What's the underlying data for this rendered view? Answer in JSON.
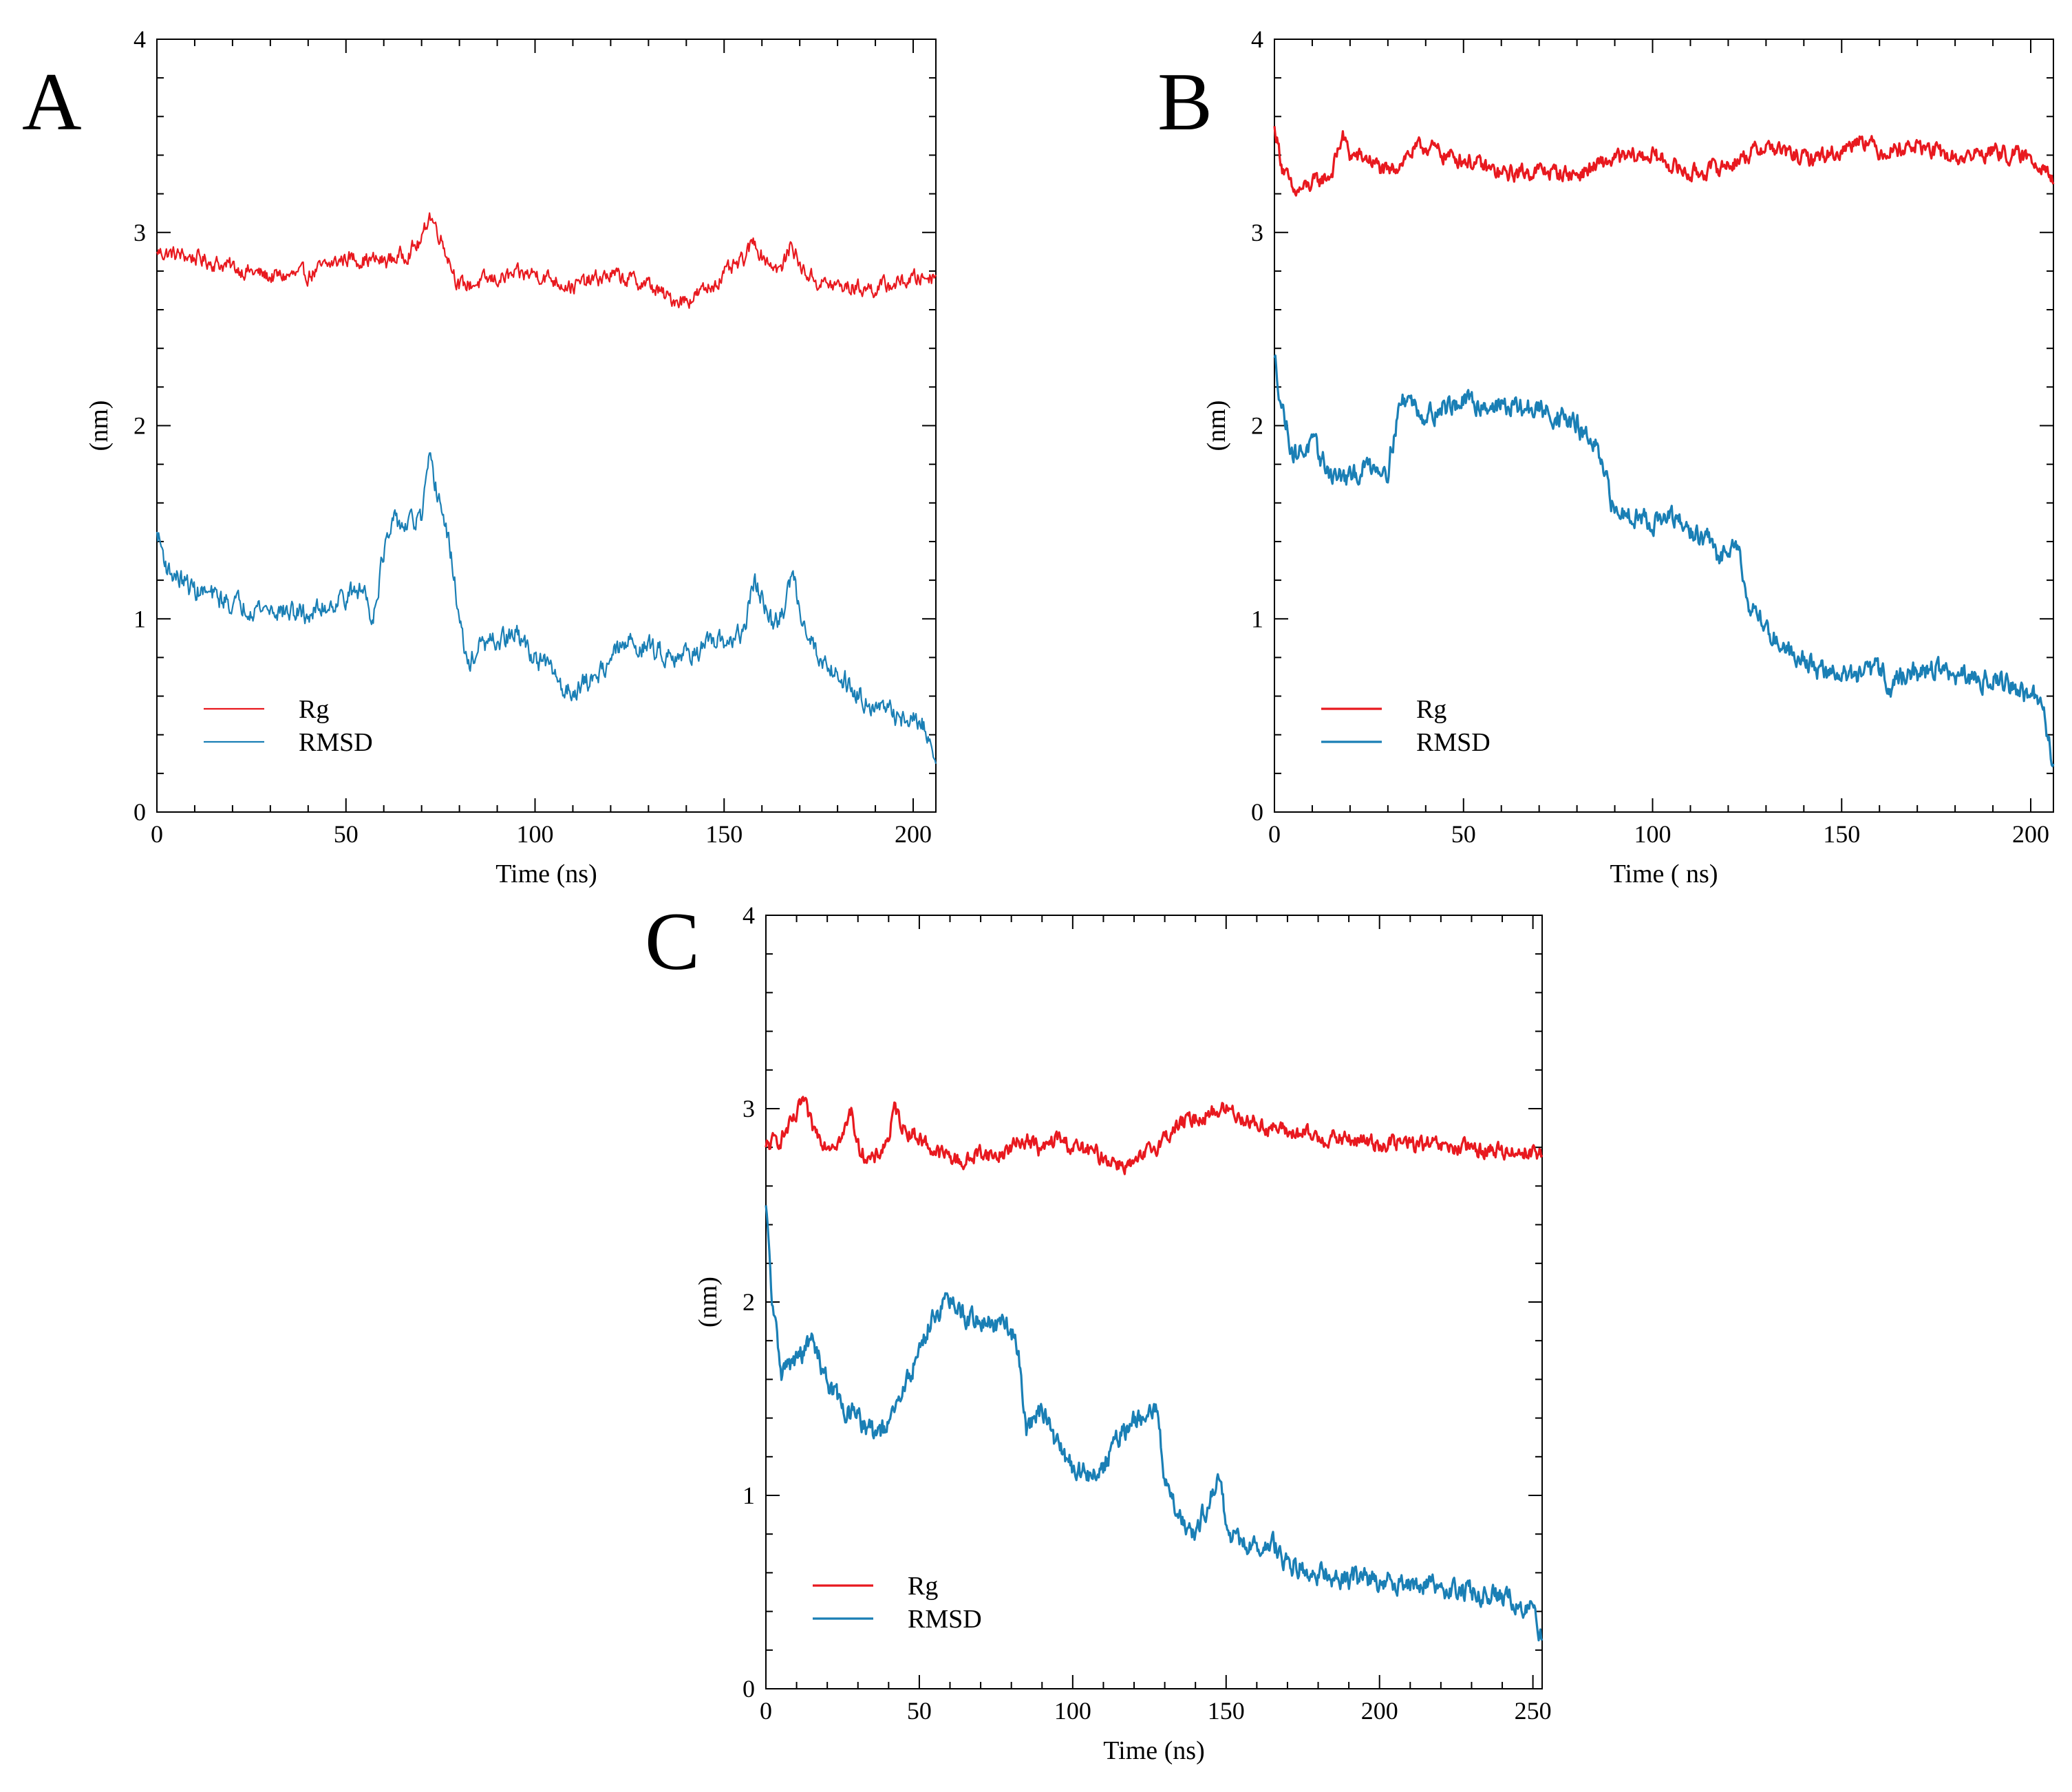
{
  "figure": {
    "panels": [
      "A",
      "B",
      "C"
    ]
  },
  "chart_data": [
    {
      "panel": "A",
      "type": "line",
      "xlabel": "Time (ns)",
      "ylabel": "(nm)",
      "xlim": [
        0,
        206
      ],
      "ylim": [
        0,
        4
      ],
      "xticks": [
        "0",
        "50",
        "100",
        "150",
        "200"
      ],
      "yticks": [
        "0",
        "1",
        "2",
        "3",
        "4"
      ],
      "legend_position": "bottom-left",
      "series": [
        {
          "name": "Rg",
          "color": "#e8191f",
          "x": [
            0,
            10,
            20,
            30,
            40,
            50,
            60,
            65,
            70,
            72,
            75,
            80,
            85,
            90,
            100,
            110,
            120,
            130,
            135,
            140,
            145,
            150,
            155,
            158,
            160,
            165,
            168,
            170,
            175,
            180,
            190,
            200,
            206
          ],
          "y": [
            2.9,
            2.87,
            2.82,
            2.77,
            2.78,
            2.87,
            2.85,
            2.88,
            2.95,
            3.1,
            2.98,
            2.72,
            2.74,
            2.76,
            2.79,
            2.72,
            2.78,
            2.73,
            2.66,
            2.65,
            2.7,
            2.78,
            2.85,
            2.96,
            2.88,
            2.8,
            2.95,
            2.82,
            2.74,
            2.72,
            2.71,
            2.76,
            2.78
          ]
        },
        {
          "name": "RMSD",
          "color": "#1a7fb5",
          "x": [
            0,
            3,
            10,
            20,
            30,
            40,
            45,
            50,
            55,
            57,
            60,
            63,
            66,
            70,
            72,
            75,
            78,
            80,
            82,
            85,
            90,
            95,
            100,
            105,
            108,
            115,
            120,
            125,
            130,
            135,
            140,
            145,
            150,
            155,
            158,
            160,
            163,
            166,
            168,
            170,
            175,
            180,
            185,
            190,
            195,
            200,
            203,
            206
          ],
          "y": [
            1.45,
            1.25,
            1.15,
            1.08,
            1.05,
            1.02,
            1.07,
            1.12,
            1.15,
            1.0,
            1.35,
            1.5,
            1.48,
            1.52,
            1.8,
            1.6,
            1.3,
            1.0,
            0.75,
            0.85,
            0.88,
            0.92,
            0.8,
            0.72,
            0.62,
            0.68,
            0.8,
            0.88,
            0.85,
            0.82,
            0.82,
            0.85,
            0.88,
            0.92,
            1.2,
            1.1,
            0.95,
            1.05,
            1.25,
            1.05,
            0.8,
            0.72,
            0.62,
            0.55,
            0.5,
            0.47,
            0.45,
            0.25
          ]
        }
      ]
    },
    {
      "panel": "B",
      "type": "line",
      "xlabel": "Time ( ns)",
      "ylabel": "(nm)",
      "xlim": [
        0,
        206
      ],
      "ylim": [
        0,
        4
      ],
      "xticks": [
        "0",
        "50",
        "100",
        "150",
        "200"
      ],
      "yticks": [
        "0",
        "1",
        "2",
        "3",
        "4"
      ],
      "legend_position": "bottom-left",
      "series": [
        {
          "name": "Rg",
          "color": "#e8191f",
          "x": [
            0,
            2,
            5,
            10,
            15,
            18,
            20,
            25,
            30,
            35,
            40,
            45,
            50,
            60,
            70,
            80,
            90,
            100,
            110,
            120,
            130,
            140,
            150,
            155,
            160,
            170,
            180,
            190,
            200,
            204,
            206
          ],
          "y": [
            3.55,
            3.35,
            3.2,
            3.25,
            3.3,
            3.5,
            3.4,
            3.38,
            3.3,
            3.4,
            3.45,
            3.4,
            3.38,
            3.3,
            3.32,
            3.3,
            3.38,
            3.4,
            3.3,
            3.35,
            3.45,
            3.38,
            3.42,
            3.5,
            3.42,
            3.45,
            3.38,
            3.42,
            3.38,
            3.35,
            3.25
          ]
        },
        {
          "name": "RMSD",
          "color": "#1a7fb5",
          "x": [
            0,
            2,
            5,
            10,
            15,
            20,
            25,
            30,
            33,
            35,
            40,
            45,
            50,
            60,
            70,
            75,
            80,
            85,
            90,
            95,
            100,
            105,
            110,
            115,
            118,
            122,
            125,
            130,
            135,
            140,
            145,
            150,
            155,
            160,
            163,
            165,
            170,
            175,
            180,
            185,
            190,
            195,
            200,
            203,
            206
          ],
          "y": [
            2.35,
            2.1,
            1.85,
            1.9,
            1.75,
            1.72,
            1.8,
            1.78,
            2.1,
            2.15,
            2.05,
            2.1,
            2.12,
            2.1,
            2.08,
            2.05,
            2.0,
            1.88,
            1.55,
            1.55,
            1.5,
            1.52,
            1.45,
            1.4,
            1.3,
            1.45,
            1.1,
            0.95,
            0.85,
            0.8,
            0.72,
            0.72,
            0.7,
            0.75,
            0.65,
            0.7,
            0.72,
            0.75,
            0.7,
            0.68,
            0.7,
            0.65,
            0.6,
            0.55,
            0.25
          ]
        }
      ]
    },
    {
      "panel": "C",
      "type": "line",
      "xlabel": "Time (ns)",
      "ylabel": "(nm)",
      "xlim": [
        0,
        253
      ],
      "ylim": [
        0,
        4
      ],
      "xticks": [
        "0",
        "50",
        "100",
        "150",
        "200",
        "250"
      ],
      "yticks": [
        "0",
        "1",
        "2",
        "3",
        "4"
      ],
      "legend_position": "bottom-left",
      "series": [
        {
          "name": "Rg",
          "color": "#e8191f",
          "x": [
            0,
            5,
            10,
            12,
            15,
            20,
            25,
            28,
            30,
            35,
            40,
            42,
            45,
            50,
            55,
            60,
            65,
            70,
            75,
            80,
            85,
            90,
            95,
            100,
            105,
            110,
            115,
            120,
            125,
            130,
            135,
            140,
            145,
            150,
            160,
            170,
            180,
            190,
            200,
            210,
            220,
            230,
            240,
            250,
            253
          ],
          "y": [
            2.8,
            2.85,
            2.95,
            3.05,
            2.9,
            2.82,
            2.85,
            3.0,
            2.8,
            2.72,
            2.85,
            3.0,
            2.9,
            2.85,
            2.78,
            2.75,
            2.72,
            2.78,
            2.75,
            2.8,
            2.85,
            2.78,
            2.85,
            2.8,
            2.78,
            2.75,
            2.72,
            2.7,
            2.78,
            2.85,
            2.92,
            2.95,
            2.98,
            3.0,
            2.92,
            2.88,
            2.85,
            2.84,
            2.82,
            2.82,
            2.8,
            2.79,
            2.78,
            2.78,
            2.76
          ]
        },
        {
          "name": "RMSD",
          "color": "#1a7fb5",
          "x": [
            0,
            2,
            5,
            10,
            15,
            20,
            25,
            30,
            35,
            40,
            45,
            50,
            55,
            60,
            65,
            70,
            75,
            80,
            82,
            85,
            90,
            95,
            100,
            105,
            110,
            115,
            120,
            125,
            128,
            130,
            135,
            140,
            145,
            148,
            150,
            155,
            160,
            165,
            170,
            180,
            190,
            200,
            210,
            220,
            230,
            240,
            245,
            250,
            253
          ],
          "y": [
            2.5,
            2.0,
            1.65,
            1.7,
            1.8,
            1.6,
            1.45,
            1.4,
            1.32,
            1.35,
            1.55,
            1.75,
            1.95,
            2.0,
            1.92,
            1.9,
            1.88,
            1.85,
            1.78,
            1.35,
            1.45,
            1.25,
            1.15,
            1.1,
            1.15,
            1.3,
            1.38,
            1.4,
            1.45,
            1.05,
            0.9,
            0.8,
            1.0,
            1.1,
            0.82,
            0.75,
            0.72,
            0.75,
            0.65,
            0.6,
            0.57,
            0.56,
            0.55,
            0.52,
            0.5,
            0.48,
            0.45,
            0.4,
            0.25
          ]
        }
      ]
    }
  ]
}
